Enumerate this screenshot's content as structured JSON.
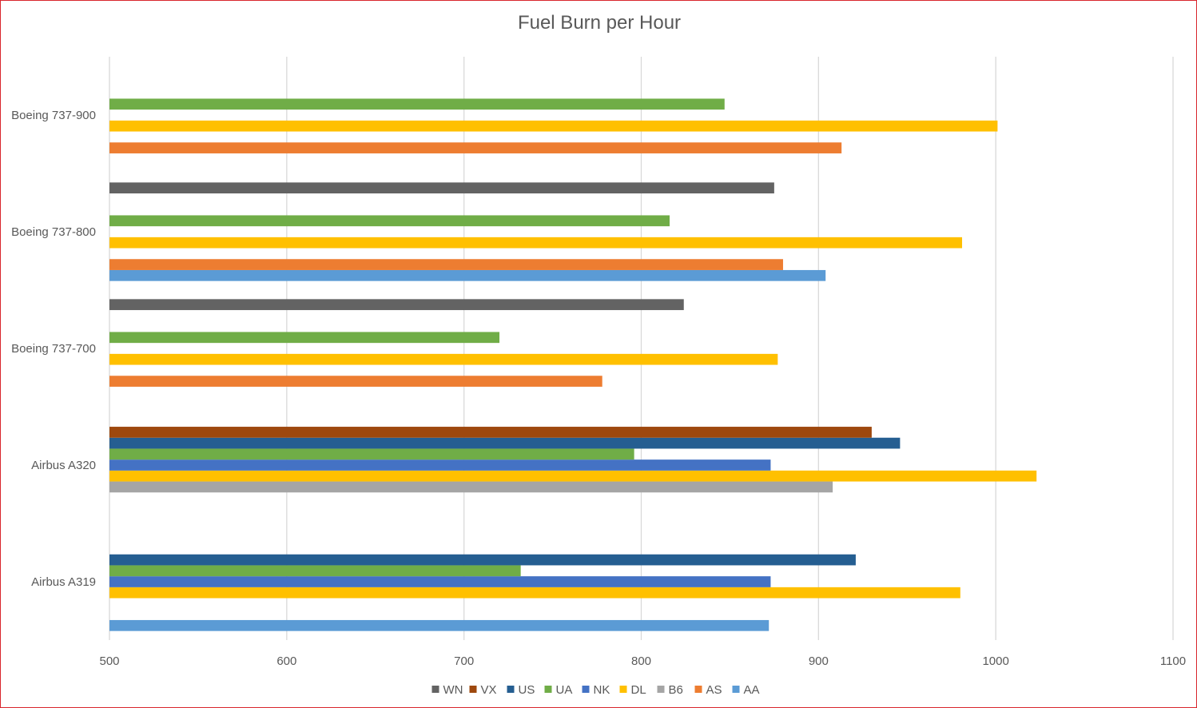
{
  "chart_data": {
    "type": "bar",
    "orientation": "horizontal",
    "title": "Fuel Burn per Hour",
    "xlabel": "",
    "ylabel": "",
    "xlim": [
      500,
      1100
    ],
    "x_ticks": [
      500,
      600,
      700,
      800,
      900,
      1000,
      1100
    ],
    "grid": "vertical",
    "legend_position": "bottom",
    "categories": [
      "Airbus A319",
      "Airbus A320",
      "Boeing 737-700",
      "Boeing 737-800",
      "Boeing 737-900"
    ],
    "series": [
      {
        "name": "AA",
        "color": "#5b9bd5",
        "values": [
          872,
          null,
          null,
          904,
          null
        ]
      },
      {
        "name": "AS",
        "color": "#ed7d31",
        "values": [
          null,
          null,
          778,
          880,
          913
        ]
      },
      {
        "name": "B6",
        "color": "#a5a5a5",
        "values": [
          null,
          908,
          null,
          null,
          null
        ]
      },
      {
        "name": "DL",
        "color": "#ffc000",
        "values": [
          980,
          1023,
          877,
          981,
          1001
        ]
      },
      {
        "name": "NK",
        "color": "#4472c4",
        "values": [
          873,
          873,
          null,
          null,
          null
        ]
      },
      {
        "name": "UA",
        "color": "#70ad47",
        "values": [
          732,
          796,
          720,
          816,
          847
        ]
      },
      {
        "name": "US",
        "color": "#255e91",
        "values": [
          921,
          946,
          null,
          null,
          null
        ]
      },
      {
        "name": "VX",
        "color": "#9e480e",
        "values": [
          null,
          930,
          null,
          null,
          null
        ]
      },
      {
        "name": "WN",
        "color": "#636363",
        "values": [
          null,
          null,
          824,
          875,
          null
        ]
      }
    ]
  }
}
